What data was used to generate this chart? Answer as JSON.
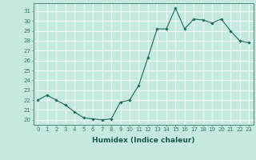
{
  "x": [
    0,
    1,
    2,
    3,
    4,
    5,
    6,
    7,
    8,
    9,
    10,
    11,
    12,
    13,
    14,
    15,
    16,
    17,
    18,
    19,
    20,
    21,
    22,
    23
  ],
  "y": [
    22,
    22.5,
    22,
    21.5,
    20.8,
    20.2,
    20.1,
    20.0,
    20.1,
    21.8,
    22.0,
    23.5,
    26.3,
    29.2,
    29.2,
    31.3,
    29.2,
    30.2,
    30.1,
    29.8,
    30.2,
    29.0,
    28.0,
    27.8
  ],
  "line_color": "#1a6b5a",
  "marker": "D",
  "marker_size": 1.8,
  "linewidth": 0.8,
  "xlabel": "Humidex (Indice chaleur)",
  "xlim": [
    -0.5,
    23.5
  ],
  "ylim": [
    19.5,
    31.8
  ],
  "yticks": [
    20,
    21,
    22,
    23,
    24,
    25,
    26,
    27,
    28,
    29,
    30,
    31
  ],
  "xticks": [
    0,
    1,
    2,
    3,
    4,
    5,
    6,
    7,
    8,
    9,
    10,
    11,
    12,
    13,
    14,
    15,
    16,
    17,
    18,
    19,
    20,
    21,
    22,
    23
  ],
  "xtick_labels": [
    "0",
    "1",
    "2",
    "3",
    "4",
    "5",
    "6",
    "7",
    "8",
    "9",
    "10",
    "11",
    "12",
    "13",
    "14",
    "15",
    "16",
    "17",
    "18",
    "19",
    "20",
    "21",
    "22",
    "23"
  ],
  "bg_color": "#c5e8e0",
  "grid_color": "#ffffff",
  "spine_color": "#3a7a6a",
  "tick_fontsize": 5,
  "xlabel_fontsize": 6.5
}
